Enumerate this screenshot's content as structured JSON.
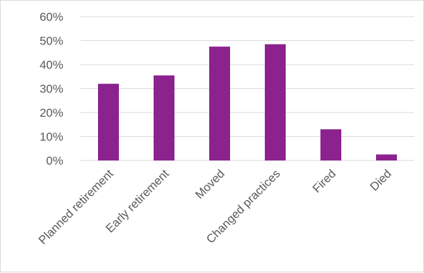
{
  "chart_data": {
    "type": "bar",
    "categories": [
      "Planned retirement",
      "Early retirement",
      "Moved",
      "Changed practices",
      "Fired",
      "Died"
    ],
    "values": [
      32,
      35.5,
      47.5,
      48.5,
      13,
      2.5
    ],
    "ylim": [
      0,
      60
    ],
    "yticks": [
      "0%",
      "10%",
      "20%",
      "30%",
      "40%",
      "50%",
      "60%"
    ],
    "title": "",
    "xlabel": "",
    "ylabel": "",
    "grid": true,
    "legend": "none",
    "bar_color": "#8B228E"
  }
}
